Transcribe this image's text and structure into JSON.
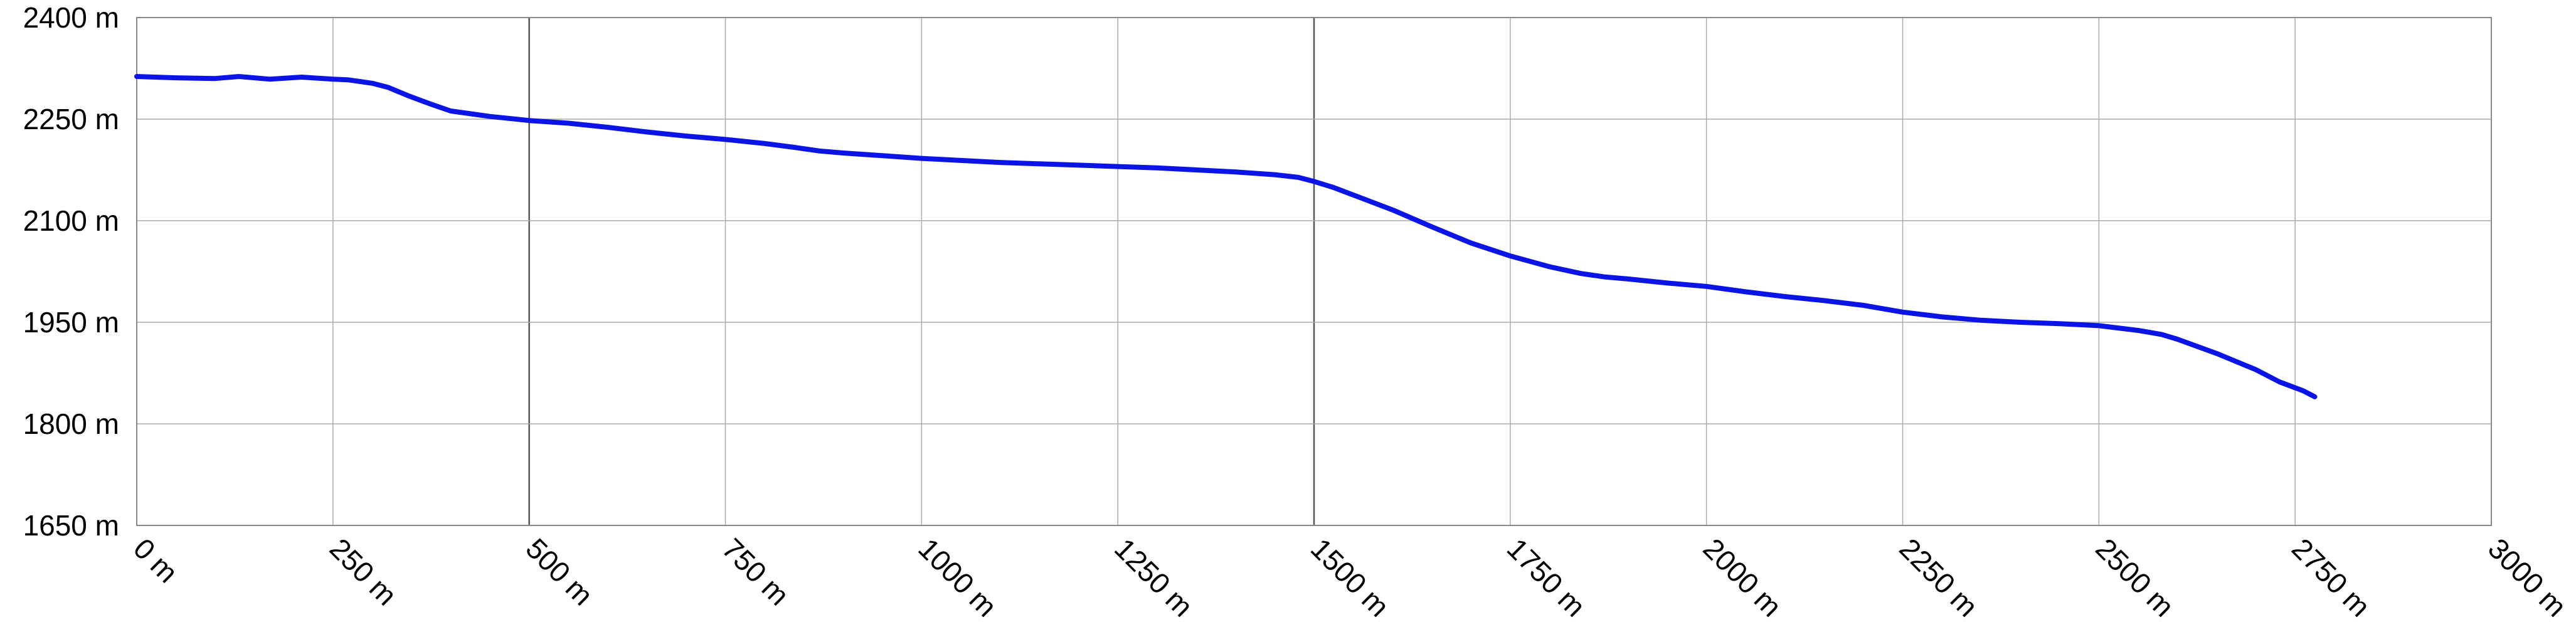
{
  "chart_data": {
    "type": "line",
    "title": "",
    "xlabel": "",
    "ylabel": "",
    "xlim": [
      0,
      3000
    ],
    "ylim": [
      1650,
      2400
    ],
    "grid": true,
    "legend": "none",
    "line_color": "#0a14e6",
    "grid_color": "#aaaaaa",
    "major_grid_color": "#555555",
    "x_ticks": [
      0,
      250,
      500,
      750,
      1000,
      1250,
      1500,
      1750,
      2000,
      2250,
      2500,
      2750,
      3000
    ],
    "x_tick_labels": [
      "0 m",
      "250 m",
      "500 m",
      "750 m",
      "1000 m",
      "1250 m",
      "1500 m",
      "1750 m",
      "2000 m",
      "2250 m",
      "2500 m",
      "2750 m",
      "3000 m"
    ],
    "y_ticks": [
      1650,
      1800,
      1950,
      2100,
      2250,
      2400
    ],
    "y_tick_labels": [
      "1650 m",
      "1800 m",
      "1950 m",
      "2100 m",
      "2250 m",
      "2400 m"
    ],
    "series": [
      {
        "x": [
          0,
          50,
          100,
          130,
          170,
          210,
          250,
          270,
          300,
          320,
          345,
          375,
          400,
          450,
          500,
          550,
          600,
          650,
          700,
          750,
          800,
          840,
          870,
          900,
          950,
          1000,
          1050,
          1100,
          1150,
          1200,
          1250,
          1300,
          1350,
          1400,
          1450,
          1480,
          1500,
          1525,
          1550,
          1600,
          1650,
          1700,
          1750,
          1800,
          1840,
          1870,
          1900,
          1950,
          2000,
          2050,
          2100,
          2150,
          2200,
          2250,
          2300,
          2350,
          2400,
          2450,
          2500,
          2550,
          2580,
          2600,
          2650,
          2700,
          2730,
          2760,
          2775
        ],
        "y": [
          2313,
          2311,
          2310,
          2313,
          2309,
          2312,
          2309,
          2308,
          2303,
          2297,
          2285,
          2272,
          2262,
          2254,
          2248,
          2244,
          2238,
          2231,
          2225,
          2220,
          2214,
          2208,
          2203,
          2200,
          2196,
          2192,
          2189,
          2186,
          2184,
          2182,
          2180,
          2178,
          2175,
          2172,
          2168,
          2164,
          2158,
          2149,
          2138,
          2116,
          2091,
          2067,
          2048,
          2032,
          2022,
          2017,
          2014,
          2008,
          2003,
          1995,
          1988,
          1982,
          1975,
          1965,
          1958,
          1953,
          1950,
          1948,
          1945,
          1938,
          1932,
          1925,
          1904,
          1880,
          1862,
          1849,
          1840
        ]
      }
    ]
  }
}
